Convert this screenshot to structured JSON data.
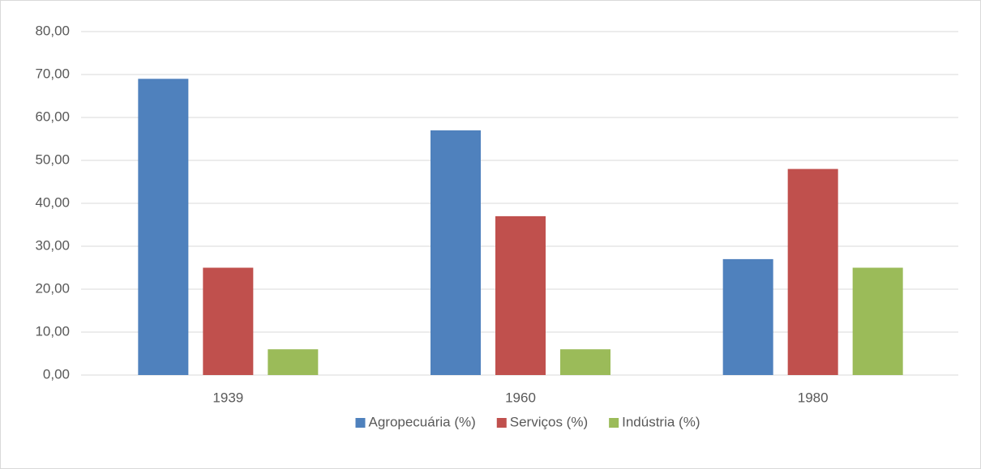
{
  "chart_data": {
    "type": "bar",
    "categories": [
      "1939",
      "1960",
      "1980"
    ],
    "series": [
      {
        "name": "Agropecuária (%)",
        "color": "#4f81bd",
        "values": [
          69,
          57,
          27
        ]
      },
      {
        "name": "Serviços (%)",
        "color": "#c0504d",
        "values": [
          25,
          37,
          48
        ]
      },
      {
        "name": "Indústria (%)",
        "color": "#9bbb59",
        "values": [
          6,
          6,
          25
        ]
      }
    ],
    "ylim": [
      0,
      80
    ],
    "yticks": [
      {
        "value": 0,
        "label": "0,00"
      },
      {
        "value": 10,
        "label": "10,00"
      },
      {
        "value": 20,
        "label": "20,00"
      },
      {
        "value": 30,
        "label": "30,00"
      },
      {
        "value": 40,
        "label": "40,00"
      },
      {
        "value": 50,
        "label": "50,00"
      },
      {
        "value": 60,
        "label": "60,00"
      },
      {
        "value": 70,
        "label": "70,00"
      },
      {
        "value": 80,
        "label": "80,00"
      }
    ],
    "grid": true,
    "legend": "bottom"
  }
}
